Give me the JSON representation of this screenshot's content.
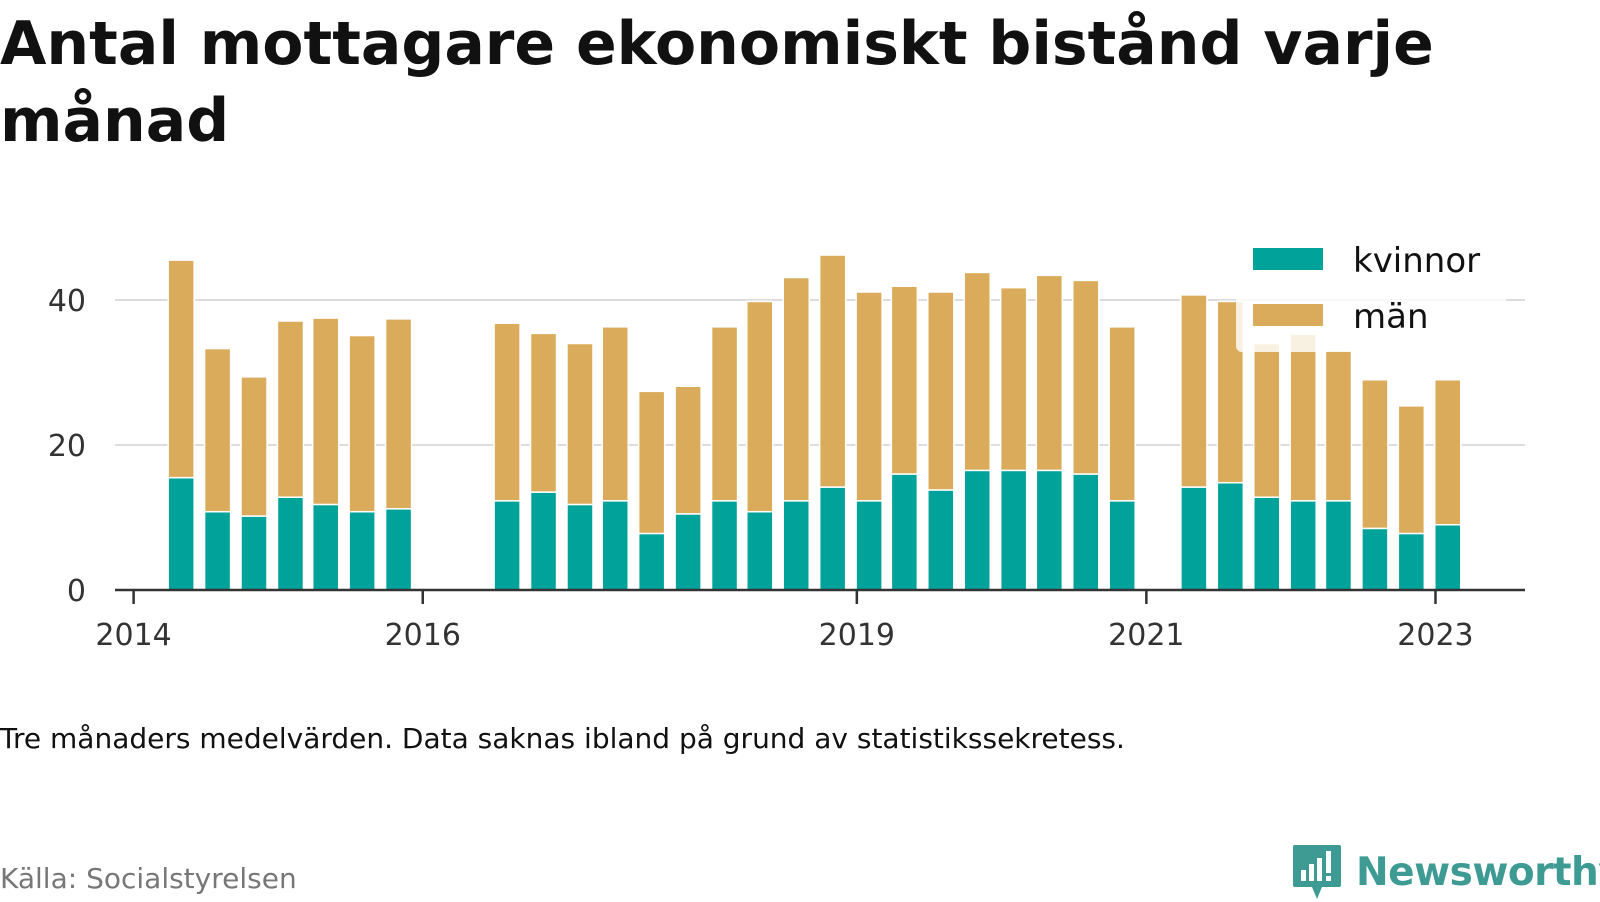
{
  "title": "Antal mottagare ekonomiskt bistånd varje månad",
  "note": "Tre månaders medelvärden. Data saknas ibland på grund av statistikssekretess.",
  "source": "Källa: Socialstyrelsen",
  "brand": "Newsworthy",
  "colors": {
    "kvinnor": "#00a29a",
    "man": "#d9ab5a",
    "grid": "#dddddd",
    "axis": "#333333",
    "brand": "#3d9b94"
  },
  "chart_data": {
    "type": "bar",
    "stacked": true,
    "title": "Antal mottagare ekonomiskt bistånd varje månad",
    "xlabel": "",
    "ylabel": "",
    "ylim": [
      0,
      50
    ],
    "yticks": [
      0,
      20,
      40
    ],
    "xlim": [
      "2013-11-15",
      "2023-08-15"
    ],
    "xticks": [
      {
        "label": "2014",
        "date": "2014-01-01"
      },
      {
        "label": "2016",
        "date": "2016-01-01"
      },
      {
        "label": "2019",
        "date": "2019-01-01"
      },
      {
        "label": "2021",
        "date": "2021-01-01"
      },
      {
        "label": "2023",
        "date": "2023-01-01"
      }
    ],
    "grid": true,
    "legend": "top-right",
    "dates": [
      "2014-05-01",
      "2014-08-01",
      "2014-11-01",
      "2015-02-01",
      "2015-05-01",
      "2015-08-01",
      "2015-11-01",
      "2016-08-01",
      "2016-11-01",
      "2017-02-01",
      "2017-05-01",
      "2017-08-01",
      "2017-11-01",
      "2018-02-01",
      "2018-05-01",
      "2018-08-01",
      "2018-11-01",
      "2019-02-01",
      "2019-05-01",
      "2019-08-01",
      "2019-11-01",
      "2020-02-01",
      "2020-05-01",
      "2020-08-01",
      "2020-11-01",
      "2021-05-01",
      "2021-08-01",
      "2021-11-01",
      "2022-02-01",
      "2022-05-01",
      "2022-08-01",
      "2022-11-01",
      "2023-02-01"
    ],
    "series": [
      {
        "name": "kvinnor",
        "values": [
          15.5,
          10.8,
          10.2,
          12.8,
          11.8,
          10.8,
          11.2,
          12.3,
          13.5,
          11.8,
          12.3,
          7.8,
          10.5,
          12.3,
          10.8,
          12.3,
          14.2,
          12.3,
          16.0,
          13.8,
          16.5,
          16.5,
          16.5,
          16.0,
          12.3,
          14.2,
          14.8,
          12.8,
          12.3,
          12.3,
          8.5,
          7.8,
          9.0
        ]
      },
      {
        "name": "män",
        "values": [
          30.0,
          22.5,
          19.2,
          24.3,
          25.7,
          24.3,
          26.2,
          24.5,
          21.9,
          22.2,
          24.0,
          19.6,
          17.6,
          24.0,
          29.0,
          30.8,
          32.0,
          28.8,
          25.9,
          27.3,
          27.3,
          25.2,
          26.9,
          26.7,
          24.0,
          26.5,
          25.0,
          21.2,
          23.0,
          20.7,
          20.5,
          17.6,
          20.0
        ]
      }
    ]
  }
}
